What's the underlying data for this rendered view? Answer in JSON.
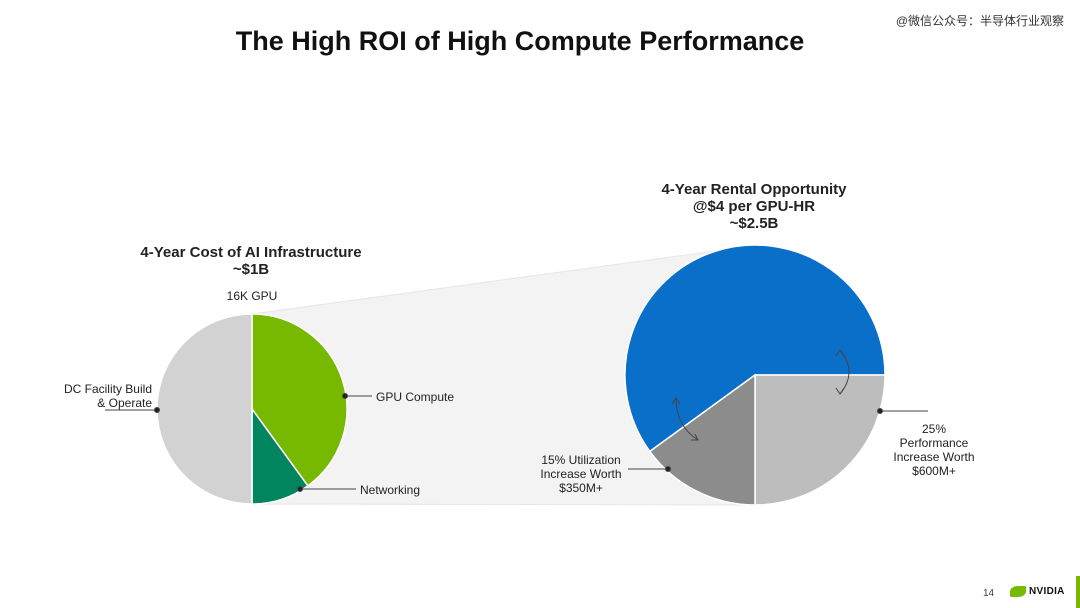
{
  "watermark": "@微信公众号：半导体行业观察",
  "page_title": "The High ROI of High Compute Performance",
  "colors": {
    "gpu_compute": "#76b900",
    "networking": "#00855f",
    "dc_facility": "#d2d2d2",
    "rental_base": "#0a6fc8",
    "utilization": "#8c8c8c",
    "performance": "#bdbdbd",
    "funnel": "#f3f3f3"
  },
  "chart_data": [
    {
      "type": "pie",
      "title": "4-Year Cost of AI Infrastructure",
      "subtitle": "~$1B",
      "annotation": "16K GPU",
      "slices": [
        {
          "label": "GPU Compute",
          "value": 40
        },
        {
          "label": "Networking",
          "value": 10
        },
        {
          "label": "DC Facility Build & Operate",
          "value": 50
        }
      ]
    },
    {
      "type": "pie",
      "title": "4-Year Rental Opportunity @$4 per GPU-HR",
      "subtitle": "~$2.5B",
      "slices": [
        {
          "label": "",
          "value": 60
        },
        {
          "label": "25% Performance Increase Worth $600M+",
          "value": 25
        },
        {
          "label": "15% Utilization Increase Worth $350M+",
          "value": 15
        }
      ]
    }
  ],
  "labels": {
    "left_title_1": "4-Year Cost of AI Infrastructure",
    "left_title_2": "~$1B",
    "gpu_count": "16K GPU",
    "dc_facility_1": "DC Facility Build",
    "dc_facility_2": "& Operate",
    "gpu_compute": "GPU Compute",
    "networking": "Networking",
    "right_title_1": "4-Year Rental Opportunity",
    "right_title_2": "@$4 per GPU-HR",
    "right_title_3": "~$2.5B",
    "utilization_1": "15% Utilization",
    "utilization_2": "Increase Worth",
    "utilization_3": "$350M+",
    "performance_1": "25%",
    "performance_2": "Performance",
    "performance_3": "Increase Worth",
    "performance_4": "$600M+"
  },
  "footer": {
    "page_number": "14",
    "brand": "NVIDIA"
  }
}
